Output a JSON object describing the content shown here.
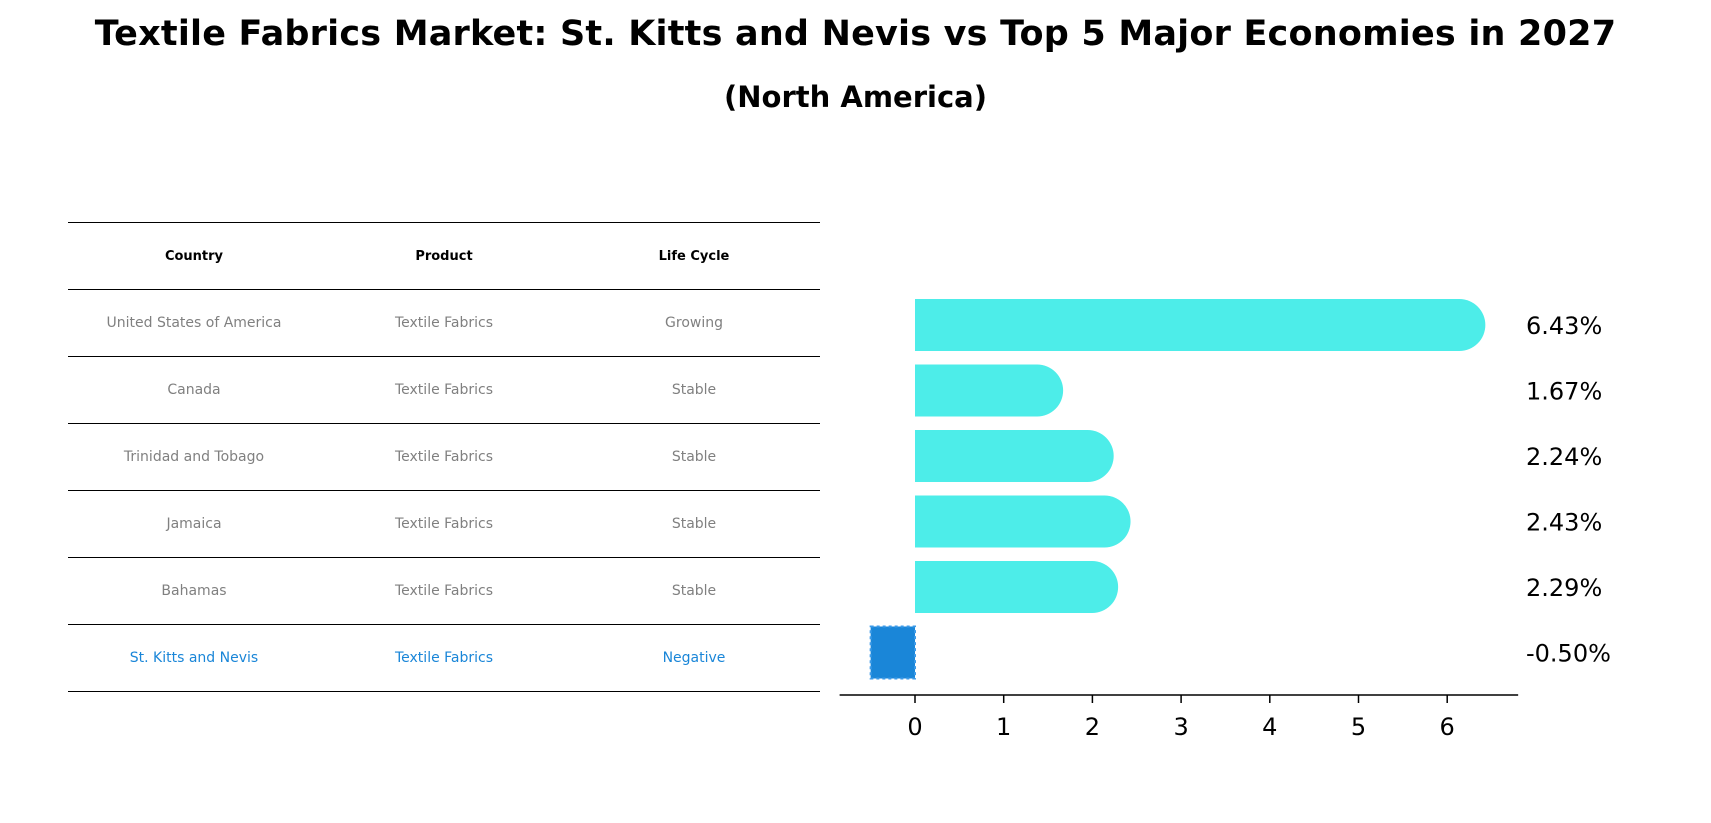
{
  "title": "Textile Fabrics Market: St. Kitts and Nevis vs Top 5 Major Economies in 2027",
  "subtitle": "(North America)",
  "table": {
    "headers": [
      "Country",
      "Product",
      "Life Cycle"
    ],
    "rows": [
      [
        "United States of America",
        "Textile Fabrics",
        "Growing"
      ],
      [
        "Canada",
        "Textile Fabrics",
        "Stable"
      ],
      [
        "Trinidad and Tobago",
        "Textile Fabrics",
        "Stable"
      ],
      [
        "Jamaica",
        "Textile Fabrics",
        "Stable"
      ],
      [
        "Bahamas",
        "Textile Fabrics",
        "Stable"
      ],
      [
        "St. Kitts and Nevis",
        "Textile Fabrics",
        "Negative"
      ]
    ],
    "highlight_color": "#1a86d8",
    "text_color": "#808080"
  },
  "chart_data": {
    "type": "bar",
    "orientation": "horizontal",
    "categories": [
      "United States of America",
      "Canada",
      "Trinidad and Tobago",
      "Jamaica",
      "Bahamas",
      "St. Kitts and Nevis"
    ],
    "values": [
      6.43,
      1.67,
      2.24,
      2.43,
      2.29,
      -0.5
    ],
    "value_labels": [
      "6.43%",
      "1.67%",
      "2.24%",
      "2.43%",
      "2.29%",
      "-0.50%"
    ],
    "xlim": [
      -0.85,
      6.8
    ],
    "xticks": [
      0,
      1,
      2,
      3,
      4,
      5,
      6
    ],
    "bar_color": "#4dede9",
    "highlight_color": "#1a86d8",
    "highlight_index": 5,
    "grid": false
  }
}
